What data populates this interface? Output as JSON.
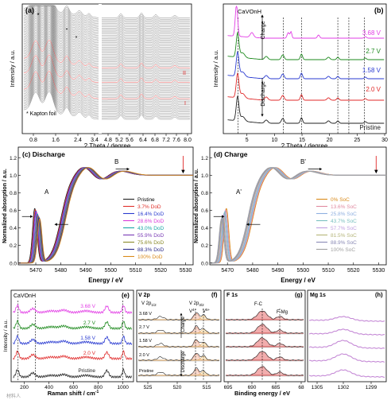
{
  "panels": {
    "a": {
      "label": "(a)",
      "xlabel": "2 Theta / degree",
      "ylabel": "Intensity / a.u.",
      "xticks_left": [
        "0.8",
        "1.6",
        "2.4",
        "3.4"
      ],
      "xticks_right": [
        "4.8",
        "5.2",
        "5.6",
        "6.4",
        "6.8",
        "7.2",
        "7.6",
        "8.0"
      ],
      "footnote": "* Kapton foil",
      "marker_II": "II",
      "marker_I": "I"
    },
    "b": {
      "label": "(b)",
      "title": "CaVOnH",
      "xlabel": "2 Theta / degree",
      "ylabel": "Intensity / a.u.",
      "xticks": [
        "5",
        "10",
        "15",
        "20",
        "25",
        "30"
      ],
      "charge": "Charge",
      "discharge": "Discharge",
      "curves": [
        {
          "label": "3.68 V",
          "color": "#e23ee5"
        },
        {
          "label": "2.7 V",
          "color": "#1e8a1e"
        },
        {
          "label": "1.58 V",
          "color": "#2a3bd1"
        },
        {
          "label": "2.0 V",
          "color": "#e02a2a"
        },
        {
          "label": "Pristine",
          "color": "#222222"
        }
      ]
    },
    "c": {
      "label": "(c) Discharge",
      "xlabel": "Energy / eV",
      "ylabel": "Normalized absorption / a.u.",
      "xticks": [
        "5470",
        "5480",
        "5490",
        "5500",
        "5510",
        "5520",
        "5530"
      ],
      "yticks": [
        "0.0",
        "0.2",
        "0.4",
        "0.6",
        "0.8",
        "1.0",
        "1.2"
      ],
      "peakA": "A",
      "peakB": "B",
      "legend": [
        {
          "label": "Pristine",
          "color": "#222222"
        },
        {
          "label": "3.7% DoD",
          "color": "#e0302a"
        },
        {
          "label": "16.4% DoD",
          "color": "#2b3ccf"
        },
        {
          "label": "28.6% DoD",
          "color": "#d93ad9"
        },
        {
          "label": "43.0% DoD",
          "color": "#1aa7a7"
        },
        {
          "label": "55.9% DoD",
          "color": "#7a3bb5"
        },
        {
          "label": "75.6% DoD",
          "color": "#8a8a2a"
        },
        {
          "label": "88.3% DoD",
          "color": "#2a2a8a"
        },
        {
          "label": "100% DoD",
          "color": "#d98a1a"
        }
      ]
    },
    "d": {
      "label": "(d) Charge",
      "xlabel": "Energy / eV",
      "ylabel": "Normalized absorption / a.u.",
      "xticks": [
        "5470",
        "5480",
        "5490",
        "5500",
        "5510",
        "5520",
        "5530"
      ],
      "yticks": [
        "0.0",
        "0.2",
        "0.4",
        "0.6",
        "0.8",
        "1.0",
        "1.2"
      ],
      "peakA": "A'",
      "peakB": "B'",
      "legend": [
        {
          "label": "0% SoC",
          "color": "#d98a1a"
        },
        {
          "label": "13.6% SoC",
          "color": "#e08aa0"
        },
        {
          "label": "25.8% SoC",
          "color": "#8fb0e0"
        },
        {
          "label": "43.7% SoC",
          "color": "#7ac0c0"
        },
        {
          "label": "57.7% SoC",
          "color": "#c0a0e0"
        },
        {
          "label": "81.5% SoC",
          "color": "#b5b57a"
        },
        {
          "label": "88.9% SoC",
          "color": "#8a8ab5"
        },
        {
          "label": "100% SoC",
          "color": "#a0a0a0"
        }
      ]
    },
    "e": {
      "label": "(e)",
      "title": "CaVOnH",
      "xlabel": "Raman shift / cm",
      "xlabel_sup": "-1",
      "ylabel": "Intensity / a.u.",
      "xticks": [
        "200",
        "400",
        "600",
        "800",
        "1000"
      ],
      "curves": [
        {
          "label": "3.68 V",
          "color": "#e23ee5"
        },
        {
          "label": "2.7 V",
          "color": "#1e8a1e"
        },
        {
          "label": "1.58 V",
          "color": "#2a3bd1"
        },
        {
          "label": "2.0 V",
          "color": "#e02a2a"
        },
        {
          "label": "Pristine",
          "color": "#222222"
        }
      ]
    },
    "f": {
      "label": "(f)",
      "title": "V 2p",
      "sub_left": "V 2p",
      "sub_left_sub": "1/2",
      "sub_right": "V 2p",
      "sub_right_sub": "3/2",
      "v4": "V",
      "v4_sup": "4+",
      "v5": "V",
      "v5_sup": "5+",
      "charge": "Charge",
      "discharge": "Discharge",
      "xticks": [
        "525",
        "520",
        "515"
      ],
      "rows": [
        "3.68 V",
        "2.7 V",
        "1.58 V",
        "2.0 V",
        "Pristine"
      ]
    },
    "g": {
      "label": "(g)",
      "title": "F 1s",
      "fc": "F-C",
      "fmg": "F-Mg",
      "xticks": [
        "695",
        "690",
        "685",
        "68"
      ]
    },
    "h": {
      "label": "(h)",
      "title": "Mg 1s",
      "xticks": [
        "1305",
        "1302",
        "1299"
      ]
    },
    "bottom_xlabel": "Binding energy / eV"
  },
  "watermark": "材料人"
}
